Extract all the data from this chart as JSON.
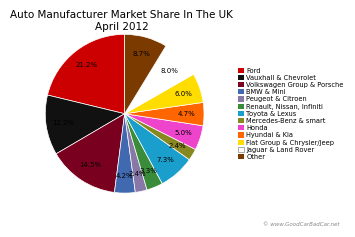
{
  "title": "Auto Manufacturer Market Share In The UK\nApril 2012",
  "labels": [
    "Ford",
    "Vauxhall & Chevrolet",
    "Volkswagen Group & Porsche",
    "BMW & Mini",
    "Peugeot & Citroen",
    "Renault, Nissan, Infiniti",
    "Toyota & Lexus",
    "Mercedes-Benz & smart",
    "Honda",
    "Hyundai & Kia",
    "Fiat Group & Chrysler/Jeep",
    "Jaguar & Land Rover",
    "Other"
  ],
  "values": [
    21.2,
    12.2,
    14.5,
    4.2,
    2.4,
    3.3,
    7.3,
    2.4,
    5.0,
    4.7,
    6.0,
    8.0,
    8.7
  ],
  "colors": [
    "#cc0000",
    "#111111",
    "#7a0020",
    "#4169b0",
    "#8878a8",
    "#3a8c3a",
    "#1a9fcc",
    "#888820",
    "#ee44cc",
    "#ff6600",
    "#ffdd00",
    "#ffffff",
    "#7b3a00"
  ],
  "startangle": 90,
  "pct_fontsize": 5.0,
  "legend_fontsize": 4.8,
  "title_fontsize": 7.5,
  "watermark": "© www.GoodCarBadCar.net"
}
